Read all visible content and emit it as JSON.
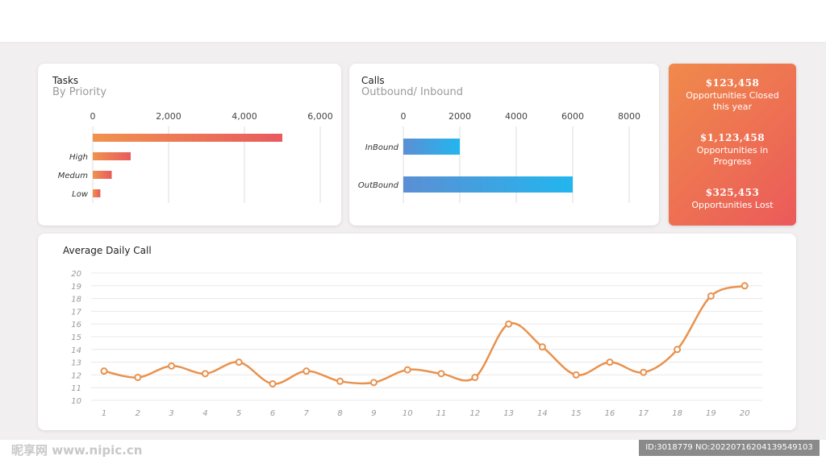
{
  "tasks_card": {
    "title": "Tasks",
    "subtitle": "By Priority"
  },
  "calls_card": {
    "title": "Calls",
    "subtitle": "Outbound/ Inbound"
  },
  "daily_card": {
    "title": "Average Daily Call"
  },
  "kpis": [
    {
      "value": "$123,458",
      "label_lines": [
        "Opportunities Closed",
        "this year"
      ]
    },
    {
      "value": "$1,123,458",
      "label_lines": [
        "Opportunities in",
        "Progress"
      ]
    },
    {
      "value": "$325,453",
      "label_lines": [
        "Opportunities Lost"
      ]
    }
  ],
  "watermark": {
    "left_text": "昵享网 www.nipic.cn",
    "id_text": "ID:3018779 NO:20220716204139549103"
  },
  "colors": {
    "tasks_bar_start": "#f0924e",
    "tasks_bar_end": "#e85a5e",
    "calls_bar_start": "#5b8fd4",
    "calls_bar_end": "#22b6ee",
    "line": "#e8924f",
    "kpi_start": "#f08a4b",
    "kpi_end": "#eb5a5a"
  },
  "chart_data": [
    {
      "type": "bar",
      "orientation": "horizontal",
      "title": "Tasks",
      "subtitle": "By Priority",
      "categories": [
        "",
        "High",
        "Medum",
        "Low"
      ],
      "values": [
        5000,
        1000,
        500,
        200
      ],
      "x_ticks": [
        "0",
        "2,000",
        "4,000",
        "6,000"
      ],
      "xlim": [
        0,
        6000
      ],
      "grid": true,
      "axis_position": "top"
    },
    {
      "type": "bar",
      "orientation": "horizontal",
      "title": "Calls",
      "subtitle": "Outbound/ Inbound",
      "categories": [
        "InBound",
        "OutBound"
      ],
      "values": [
        2000,
        6000
      ],
      "x_ticks": [
        "0",
        "2000",
        "4000",
        "6000",
        "8000"
      ],
      "xlim": [
        0,
        8000
      ],
      "grid": true,
      "axis_position": "top"
    },
    {
      "type": "line",
      "title": "Average Daily Call",
      "x": [
        "1",
        "2",
        "3",
        "4",
        "5",
        "6",
        "7",
        "8",
        "9",
        "10",
        "11",
        "12",
        "13",
        "14",
        "15",
        "16",
        "17",
        "18",
        "19",
        "20"
      ],
      "values": [
        12.3,
        11.8,
        12.7,
        12.1,
        13.0,
        11.3,
        12.3,
        11.5,
        11.4,
        12.4,
        12.1,
        11.8,
        16.0,
        14.2,
        12.0,
        13.0,
        12.2,
        14.0,
        18.2,
        19.0
      ],
      "y_ticks": [
        "10",
        "11",
        "12",
        "13",
        "14",
        "15",
        "16",
        "17",
        "18",
        "19",
        "20"
      ],
      "ylim": [
        10,
        20
      ],
      "grid": true,
      "smooth": true,
      "markers": "hollow-circle"
    }
  ]
}
